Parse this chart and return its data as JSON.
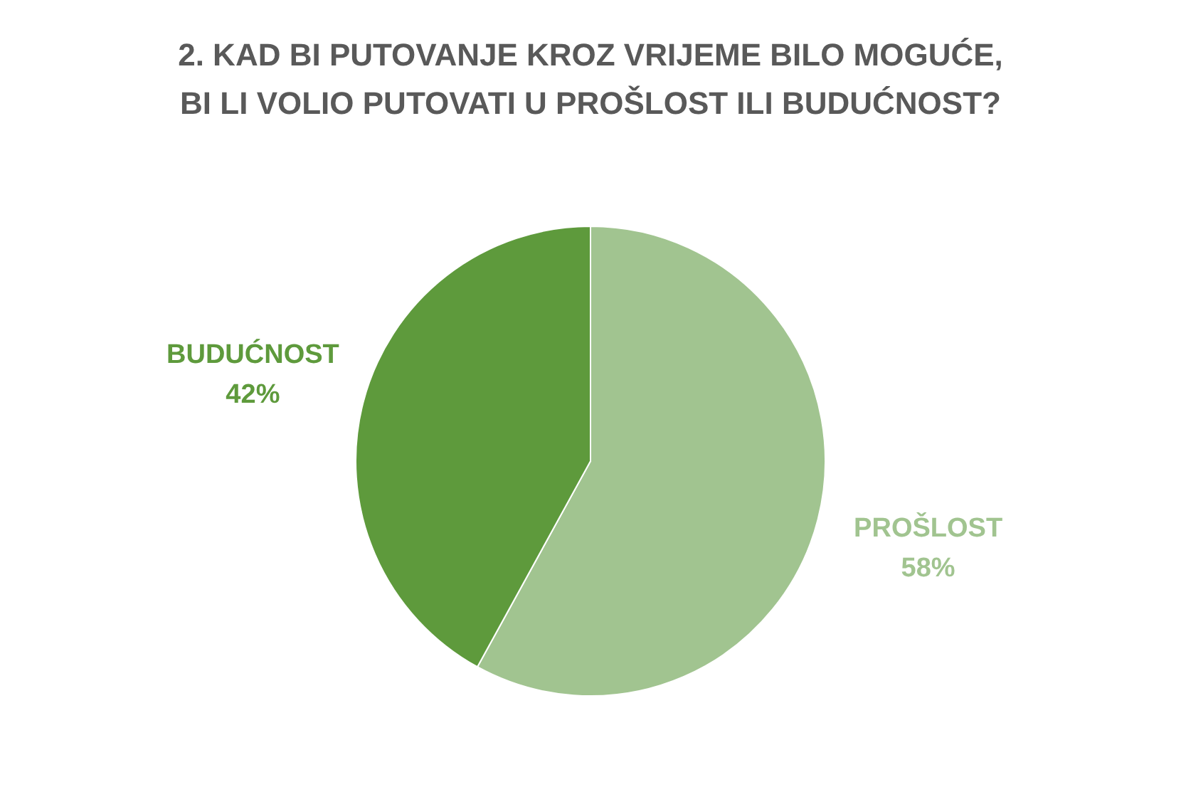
{
  "chart_data": {
    "type": "pie",
    "title": [
      "2. KAD BI PUTOVANJE KROZ VRIJEME BILO MOGUĆE,",
      "BI LI VOLIO PUTOVATI U PROŠLOST ILI BUDUĆNOST?"
    ],
    "categories": [
      "PROŠLOST",
      "BUDUĆNOST"
    ],
    "values": [
      58,
      42
    ],
    "colors": [
      "#a1c490",
      "#5e9a3c"
    ],
    "value_labels": [
      "58%",
      "42%"
    ],
    "legend": false
  }
}
